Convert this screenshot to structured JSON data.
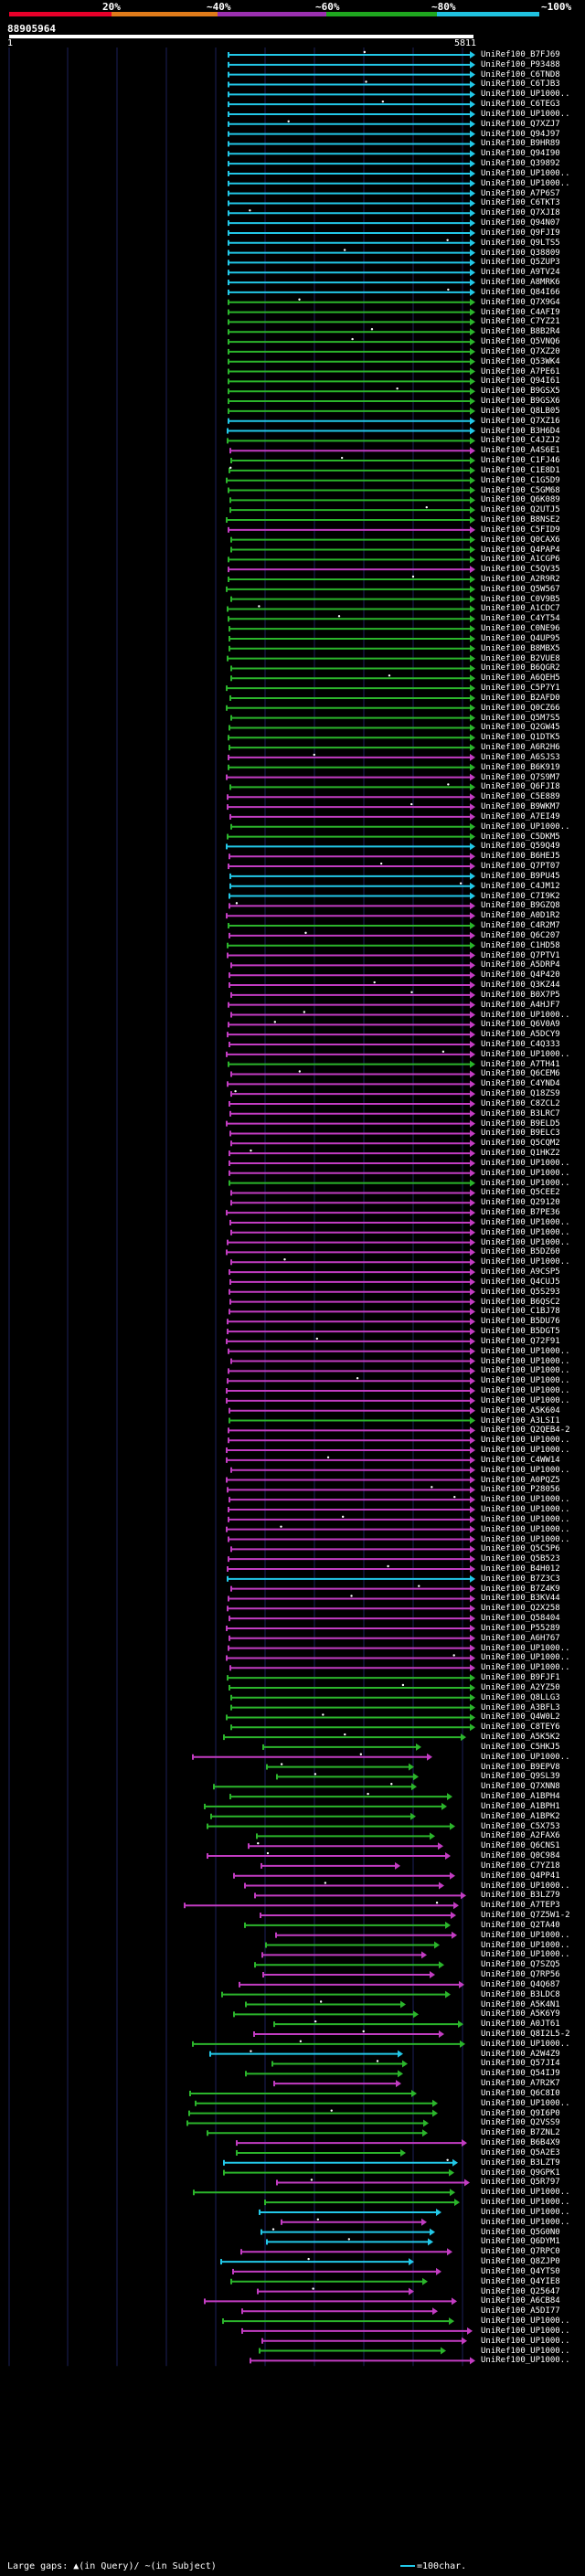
{
  "header": {
    "identity_labels": [
      "20%",
      "~40%",
      "~60%",
      "~80%",
      "~100%"
    ],
    "identity_colors": [
      "#e8002a",
      "#e07b1a",
      "#9b30b0",
      "#1fa71f",
      "#20c2e0"
    ],
    "query_id": "88905964",
    "scale_start": "1",
    "scale_end": "5811"
  },
  "legend": {
    "left": "Large gaps: ▲(in Query)/ ~(in Subject)",
    "right": "=100char."
  },
  "colors": {
    "cyan": "#22c8e8",
    "green": "#2bb52b",
    "magenta": "#c23cc2",
    "gap": "#777777",
    "grid": "#1b1f5a",
    "scale": "#ffffff"
  },
  "hits": [
    {
      "label": "UniRef100_B7FJ69",
      "c": "cyan"
    },
    {
      "label": "UniRef100_P93488",
      "c": "cyan"
    },
    {
      "label": "UniRef100_C6TND8",
      "c": "cyan"
    },
    {
      "label": "UniRef100_C6TJB3",
      "c": "cyan"
    },
    {
      "label": "UniRef100_UP1000..",
      "c": "cyan"
    },
    {
      "label": "UniRef100_C6TEG3",
      "c": "cyan"
    },
    {
      "label": "UniRef100_UP1000..",
      "c": "cyan"
    },
    {
      "label": "UniRef100_Q7XZJ7",
      "c": "cyan"
    },
    {
      "label": "UniRef100_Q94J97",
      "c": "cyan"
    },
    {
      "label": "UniRef100_B9HR89",
      "c": "cyan"
    },
    {
      "label": "UniRef100_Q94I90",
      "c": "cyan"
    },
    {
      "label": "UniRef100_Q39892",
      "c": "cyan"
    },
    {
      "label": "UniRef100_UP1000..",
      "c": "cyan"
    },
    {
      "label": "UniRef100_UP1000..",
      "c": "cyan"
    },
    {
      "label": "UniRef100_A7P6S7",
      "c": "cyan"
    },
    {
      "label": "UniRef100_C6TKT3",
      "c": "cyan"
    },
    {
      "label": "UniRef100_Q7XJI8",
      "c": "cyan"
    },
    {
      "label": "UniRef100_Q94N07",
      "c": "cyan"
    },
    {
      "label": "UniRef100_Q9FJI9",
      "c": "cyan"
    },
    {
      "label": "UniRef100_Q9LTS5",
      "c": "cyan"
    },
    {
      "label": "UniRef100_Q38809",
      "c": "cyan"
    },
    {
      "label": "UniRef100_Q5ZUP3",
      "c": "cyan"
    },
    {
      "label": "UniRef100_A9TV24",
      "c": "cyan"
    },
    {
      "label": "UniRef100_A8MRK6",
      "c": "cyan"
    },
    {
      "label": "UniRef100_Q84I66",
      "c": "cyan"
    },
    {
      "label": "UniRef100_Q7X9G4",
      "c": "green"
    },
    {
      "label": "UniRef100_C4AFI9",
      "c": "green"
    },
    {
      "label": "UniRef100_C7YZ21",
      "c": "green"
    },
    {
      "label": "UniRef100_B8B2R4",
      "c": "green"
    },
    {
      "label": "UniRef100_Q5VNQ6",
      "c": "green"
    },
    {
      "label": "UniRef100_Q7XZ20",
      "c": "green"
    },
    {
      "label": "UniRef100_Q53WK4",
      "c": "green"
    },
    {
      "label": "UniRef100_A7PE61",
      "c": "green"
    },
    {
      "label": "UniRef100_Q94I61",
      "c": "green"
    },
    {
      "label": "UniRef100_B9GSX5",
      "c": "green"
    },
    {
      "label": "UniRef100_B9GSX6",
      "c": "green"
    },
    {
      "label": "UniRef100_Q8LB05",
      "c": "green"
    },
    {
      "label": "UniRef100_Q7XZ16",
      "c": "cyan"
    },
    {
      "label": "UniRef100_B3H6D4",
      "c": "cyan"
    },
    {
      "label": "UniRef100_C4JZJ2",
      "c": "green"
    },
    {
      "label": "UniRef100_A4S6E1",
      "c": "magenta"
    },
    {
      "label": "UniRef100_C1FJ46",
      "c": "green"
    },
    {
      "label": "UniRef100_C1E8D1",
      "c": "green"
    },
    {
      "label": "UniRef100_C1G5D9",
      "c": "green"
    },
    {
      "label": "UniRef100_C5GM68",
      "c": "green"
    },
    {
      "label": "UniRef100_Q6K089",
      "c": "green"
    },
    {
      "label": "UniRef100_Q2UTJ5",
      "c": "green"
    },
    {
      "label": "UniRef100_B8NSE2",
      "c": "green"
    },
    {
      "label": "UniRef100_C5FID9",
      "c": "magenta"
    },
    {
      "label": "UniRef100_Q0CAX6",
      "c": "green"
    },
    {
      "label": "UniRef100_Q4PAP4",
      "c": "green"
    },
    {
      "label": "UniRef100_A1CGP6",
      "c": "green"
    },
    {
      "label": "UniRef100_C5QV35",
      "c": "magenta"
    },
    {
      "label": "UniRef100_A2R9R2",
      "c": "green"
    },
    {
      "label": "UniRef100_Q5W567",
      "c": "green"
    },
    {
      "label": "UniRef100_C0V9B5",
      "c": "green"
    },
    {
      "label": "UniRef100_A1CDC7",
      "c": "green"
    },
    {
      "label": "UniRef100_C4YT54",
      "c": "green"
    },
    {
      "label": "UniRef100_C0NE96",
      "c": "green"
    },
    {
      "label": "UniRef100_Q4UP95",
      "c": "green"
    },
    {
      "label": "UniRef100_B8MBX5",
      "c": "green"
    },
    {
      "label": "UniRef100_B2VUE8",
      "c": "green"
    },
    {
      "label": "UniRef100_B6QGR2",
      "c": "green"
    },
    {
      "label": "UniRef100_A6QEH5",
      "c": "green"
    },
    {
      "label": "UniRef100_C5P7Y1",
      "c": "green"
    },
    {
      "label": "UniRef100_B2AFD0",
      "c": "green"
    },
    {
      "label": "UniRef100_Q0CZ66",
      "c": "green"
    },
    {
      "label": "UniRef100_Q5M7S5",
      "c": "green"
    },
    {
      "label": "UniRef100_Q2GW45",
      "c": "green"
    },
    {
      "label": "UniRef100_Q1DTK5",
      "c": "green"
    },
    {
      "label": "UniRef100_A6R2H6",
      "c": "green"
    },
    {
      "label": "UniRef100_A6SJS3",
      "c": "magenta"
    },
    {
      "label": "UniRef100_B6K919",
      "c": "green"
    },
    {
      "label": "UniRef100_Q7S9M7",
      "c": "magenta"
    },
    {
      "label": "UniRef100_Q6FJI8",
      "c": "green"
    },
    {
      "label": "UniRef100_C5E889",
      "c": "magenta"
    },
    {
      "label": "UniRef100_B9WKM7",
      "c": "magenta"
    },
    {
      "label": "UniRef100_A7EI49",
      "c": "magenta"
    },
    {
      "label": "UniRef100_UP1000..",
      "c": "green"
    },
    {
      "label": "UniRef100_C5DKM5",
      "c": "green"
    },
    {
      "label": "UniRef100_Q59Q49",
      "c": "cyan"
    },
    {
      "label": "UniRef100_B6HEJ5",
      "c": "magenta"
    },
    {
      "label": "UniRef100_Q7PT07",
      "c": "magenta"
    },
    {
      "label": "UniRef100_B9PU45",
      "c": "cyan"
    },
    {
      "label": "UniRef100_C4JM12",
      "c": "cyan"
    },
    {
      "label": "UniRef100_C7I9K2",
      "c": "cyan"
    },
    {
      "label": "UniRef100_B9GZQ8",
      "c": "magenta"
    },
    {
      "label": "UniRef100_A0D1R2",
      "c": "magenta"
    },
    {
      "label": "UniRef100_C4R2M7",
      "c": "green"
    },
    {
      "label": "UniRef100_Q6C207",
      "c": "magenta"
    },
    {
      "label": "UniRef100_C1HD58",
      "c": "green"
    },
    {
      "label": "UniRef100_Q7PTV1",
      "c": "magenta"
    },
    {
      "label": "UniRef100_A5DRP4",
      "c": "magenta"
    },
    {
      "label": "UniRef100_Q4P420",
      "c": "magenta"
    },
    {
      "label": "UniRef100_Q3KZ44",
      "c": "magenta"
    },
    {
      "label": "UniRef100_B0X7P5",
      "c": "magenta"
    },
    {
      "label": "UniRef100_A4HJF7",
      "c": "magenta"
    },
    {
      "label": "UniRef100_UP1000..",
      "c": "magenta"
    },
    {
      "label": "UniRef100_Q6V0A9",
      "c": "magenta"
    },
    {
      "label": "UniRef100_A5DCY9",
      "c": "magenta"
    },
    {
      "label": "UniRef100_C4Q333",
      "c": "magenta"
    },
    {
      "label": "UniRef100_UP1000..",
      "c": "magenta"
    },
    {
      "label": "UniRef100_A7TH41",
      "c": "green"
    },
    {
      "label": "UniRef100_Q6CEM6",
      "c": "magenta"
    },
    {
      "label": "UniRef100_C4YND4",
      "c": "magenta"
    },
    {
      "label": "UniRef100_Q18ZS9",
      "c": "magenta"
    },
    {
      "label": "UniRef100_C8ZCL2",
      "c": "magenta"
    },
    {
      "label": "UniRef100_B3LRC7",
      "c": "magenta"
    },
    {
      "label": "UniRef100_B9ELD5",
      "c": "magenta"
    },
    {
      "label": "UniRef100_B9ELC3",
      "c": "magenta"
    },
    {
      "label": "UniRef100_Q5CQM2",
      "c": "magenta"
    },
    {
      "label": "UniRef100_Q1HKZ2",
      "c": "magenta"
    },
    {
      "label": "UniRef100_UP1000..",
      "c": "magenta"
    },
    {
      "label": "UniRef100_UP1000..",
      "c": "magenta"
    },
    {
      "label": "UniRef100_UP1000..",
      "c": "green"
    },
    {
      "label": "UniRef100_Q5CEE2",
      "c": "magenta"
    },
    {
      "label": "UniRef100_Q29120",
      "c": "magenta"
    },
    {
      "label": "UniRef100_B7PE36",
      "c": "magenta"
    },
    {
      "label": "UniRef100_UP1000..",
      "c": "magenta"
    },
    {
      "label": "UniRef100_UP1000..",
      "c": "magenta"
    },
    {
      "label": "UniRef100_UP1000..",
      "c": "magenta"
    },
    {
      "label": "UniRef100_B5DZ60",
      "c": "magenta"
    },
    {
      "label": "UniRef100_UP1000..",
      "c": "magenta"
    },
    {
      "label": "UniRef100_A9CSP5",
      "c": "magenta"
    },
    {
      "label": "UniRef100_Q4CUJ5",
      "c": "magenta"
    },
    {
      "label": "UniRef100_Q5S293",
      "c": "magenta"
    },
    {
      "label": "UniRef100_B6QSC2",
      "c": "magenta"
    },
    {
      "label": "UniRef100_C1BJ78",
      "c": "magenta"
    },
    {
      "label": "UniRef100_B5DU76",
      "c": "magenta"
    },
    {
      "label": "UniRef100_B5DGT5",
      "c": "magenta"
    },
    {
      "label": "UniRef100_Q72F91",
      "c": "magenta"
    },
    {
      "label": "UniRef100_UP1000..",
      "c": "magenta"
    },
    {
      "label": "UniRef100_UP1000..",
      "c": "magenta"
    },
    {
      "label": "UniRef100_UP1000..",
      "c": "magenta"
    },
    {
      "label": "UniRef100_UP1000..",
      "c": "magenta"
    },
    {
      "label": "UniRef100_UP1000..",
      "c": "magenta"
    },
    {
      "label": "UniRef100_UP1000..",
      "c": "magenta"
    },
    {
      "label": "UniRef100_A5K604",
      "c": "magenta"
    },
    {
      "label": "UniRef100_A3LSI1",
      "c": "green"
    },
    {
      "label": "UniRef100_Q2QEB4-2",
      "c": "magenta"
    },
    {
      "label": "UniRef100_UP1000..",
      "c": "magenta"
    },
    {
      "label": "UniRef100_UP1000..",
      "c": "magenta"
    },
    {
      "label": "UniRef100_C4WW14",
      "c": "magenta"
    },
    {
      "label": "UniRef100_UP1000..",
      "c": "magenta"
    },
    {
      "label": "UniRef100_A0PQZ5",
      "c": "magenta"
    },
    {
      "label": "UniRef100_P28056",
      "c": "magenta"
    },
    {
      "label": "UniRef100_UP1000..",
      "c": "magenta"
    },
    {
      "label": "UniRef100_UP1000..",
      "c": "magenta"
    },
    {
      "label": "UniRef100_UP1000..",
      "c": "magenta"
    },
    {
      "label": "UniRef100_UP1000..",
      "c": "magenta"
    },
    {
      "label": "UniRef100_UP1000..",
      "c": "magenta"
    },
    {
      "label": "UniRef100_Q5C5P6",
      "c": "magenta"
    },
    {
      "label": "UniRef100_Q5B523",
      "c": "magenta"
    },
    {
      "label": "UniRef100_B4H012",
      "c": "magenta"
    },
    {
      "label": "UniRef100_B7Z3C3",
      "c": "cyan"
    },
    {
      "label": "UniRef100_B7Z4K9",
      "c": "magenta"
    },
    {
      "label": "UniRef100_B3KV44",
      "c": "magenta"
    },
    {
      "label": "UniRef100_Q2X258",
      "c": "magenta"
    },
    {
      "label": "UniRef100_Q58404",
      "c": "magenta"
    },
    {
      "label": "UniRef100_P55289",
      "c": "magenta"
    },
    {
      "label": "UniRef100_A6H767",
      "c": "magenta"
    },
    {
      "label": "UniRef100_UP1000..",
      "c": "magenta"
    },
    {
      "label": "UniRef100_UP1000..",
      "c": "magenta"
    },
    {
      "label": "UniRef100_UP1000..",
      "c": "magenta"
    },
    {
      "label": "UniRef100_B9FJF1",
      "c": "green"
    },
    {
      "label": "UniRef100_A2YZ50",
      "c": "green"
    },
    {
      "label": "UniRef100_Q8LLG3",
      "c": "green"
    },
    {
      "label": "UniRef100_A3BFL3",
      "c": "green"
    },
    {
      "label": "UniRef100_Q4W0L2",
      "c": "green"
    },
    {
      "label": "UniRef100_C8TEY6",
      "c": "green"
    },
    {
      "label": "UniRef100_A5K5K2",
      "c": "green"
    },
    {
      "label": "UniRef100_C5HKJ5",
      "c": "green"
    },
    {
      "label": "UniRef100_UP1000..",
      "c": "magenta"
    },
    {
      "label": "UniRef100_B9EPV8",
      "c": "green"
    },
    {
      "label": "UniRef100_Q9SL39",
      "c": "green"
    },
    {
      "label": "UniRef100_Q7XNN8",
      "c": "green"
    },
    {
      "label": "UniRef100_A1BPH4",
      "c": "green"
    },
    {
      "label": "UniRef100_A1BPH1",
      "c": "green"
    },
    {
      "label": "UniRef100_A1BPK2",
      "c": "green"
    },
    {
      "label": "UniRef100_C5X753",
      "c": "green"
    },
    {
      "label": "UniRef100_A2FAX6",
      "c": "green"
    },
    {
      "label": "UniRef100_Q6CNS1",
      "c": "magenta"
    },
    {
      "label": "UniRef100_Q0C984",
      "c": "magenta"
    },
    {
      "label": "UniRef100_C7YZ18",
      "c": "magenta"
    },
    {
      "label": "UniRef100_Q4PP41",
      "c": "magenta"
    },
    {
      "label": "UniRef100_UP1000..",
      "c": "magenta"
    },
    {
      "label": "UniRef100_B3LZ79",
      "c": "magenta"
    },
    {
      "label": "UniRef100_A7TEP3",
      "c": "magenta"
    },
    {
      "label": "UniRef100_Q7Z5W1-2",
      "c": "magenta"
    },
    {
      "label": "UniRef100_Q2TA40",
      "c": "green"
    },
    {
      "label": "UniRef100_UP1000..",
      "c": "magenta"
    },
    {
      "label": "UniRef100_UP1000..",
      "c": "green"
    },
    {
      "label": "UniRef100_UP1000..",
      "c": "magenta"
    },
    {
      "label": "UniRef100_Q7SZQ5",
      "c": "green"
    },
    {
      "label": "UniRef100_Q7RP56",
      "c": "magenta"
    },
    {
      "label": "UniRef100_Q4Q687",
      "c": "magenta"
    },
    {
      "label": "UniRef100_B3LDC8",
      "c": "green"
    },
    {
      "label": "UniRef100_A5K4N1",
      "c": "green"
    },
    {
      "label": "UniRef100_A5K6Y9",
      "c": "green"
    },
    {
      "label": "UniRef100_A0JT61",
      "c": "green"
    },
    {
      "label": "UniRef100_Q8I2L5-2",
      "c": "magenta"
    },
    {
      "label": "UniRef100_UP1000..",
      "c": "green"
    },
    {
      "label": "UniRef100_A2W4Z9",
      "c": "cyan"
    },
    {
      "label": "UniRef100_Q57JI4",
      "c": "green"
    },
    {
      "label": "UniRef100_Q54IJ9",
      "c": "green"
    },
    {
      "label": "UniRef100_A7R2K7",
      "c": "magenta"
    },
    {
      "label": "UniRef100_Q6C8I0",
      "c": "green"
    },
    {
      "label": "UniRef100_UP1000..",
      "c": "green"
    },
    {
      "label": "UniRef100_Q9I6P0",
      "c": "green"
    },
    {
      "label": "UniRef100_Q2VSS9",
      "c": "green"
    },
    {
      "label": "UniRef100_B7ZNL2",
      "c": "green"
    },
    {
      "label": "UniRef100_B6B4X9",
      "c": "magenta"
    },
    {
      "label": "UniRef100_Q5A2E3",
      "c": "green"
    },
    {
      "label": "UniRef100_B3LZT9",
      "c": "cyan"
    },
    {
      "label": "UniRef100_Q9GPK1",
      "c": "green"
    },
    {
      "label": "UniRef100_Q5R797",
      "c": "magenta"
    },
    {
      "label": "UniRef100_UP1000..",
      "c": "green"
    },
    {
      "label": "UniRef100_UP1000..",
      "c": "green"
    },
    {
      "label": "UniRef100_UP1000..",
      "c": "cyan"
    },
    {
      "label": "UniRef100_UP1000..",
      "c": "magenta"
    },
    {
      "label": "UniRef100_Q5G0N0",
      "c": "cyan"
    },
    {
      "label": "UniRef100_Q6DYM1",
      "c": "cyan"
    },
    {
      "label": "UniRef100_Q7RPC0",
      "c": "magenta"
    },
    {
      "label": "UniRef100_Q8ZJP0",
      "c": "cyan"
    },
    {
      "label": "UniRef100_Q4YTS0",
      "c": "magenta"
    },
    {
      "label": "UniRef100_Q4YIE8",
      "c": "green"
    },
    {
      "label": "UniRef100_Q25647",
      "c": "magenta"
    },
    {
      "label": "UniRef100_A6CB84",
      "c": "magenta"
    },
    {
      "label": "UniRef100_A5DI77",
      "c": "magenta"
    },
    {
      "label": "UniRef100_UP1000..",
      "c": "green"
    },
    {
      "label": "UniRef100_UP1000..",
      "c": "magenta"
    },
    {
      "label": "UniRef100_UP1000..",
      "c": "magenta"
    },
    {
      "label": "UniRef100_UP1000..",
      "c": "green"
    },
    {
      "label": "UniRef100_UP1000..",
      "c": "magenta"
    }
  ]
}
